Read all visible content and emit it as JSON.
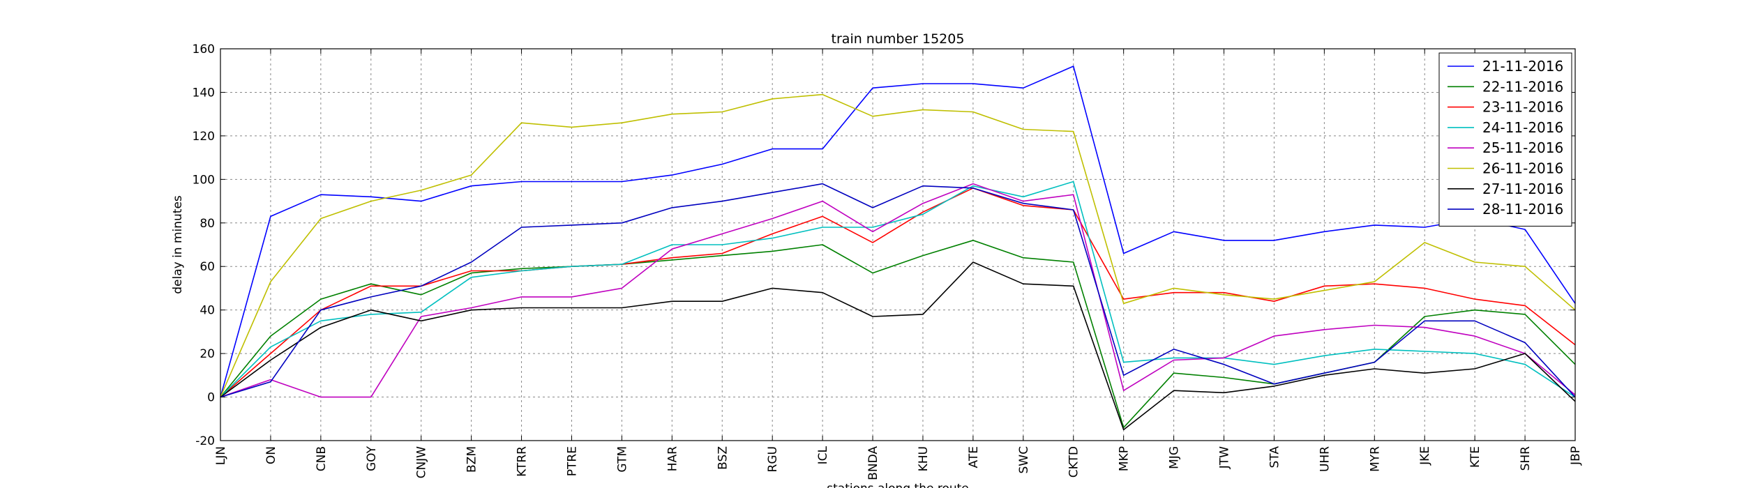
{
  "chart_data": {
    "type": "line",
    "title": "train number 15205",
    "xlabel": "stations along the route",
    "ylabel": "delay in minutes",
    "ylim": [
      -20,
      160
    ],
    "yticks": [
      -20,
      0,
      20,
      40,
      60,
      80,
      100,
      120,
      140,
      160
    ],
    "grid": true,
    "legend_position": "top-right",
    "categories": [
      "LJN",
      "ON",
      "CNB",
      "GOY",
      "CNJW",
      "BZM",
      "KTRR",
      "PTRE",
      "GTM",
      "HAR",
      "BSZ",
      "RGU",
      "ICL",
      "BNDA",
      "KHU",
      "ATE",
      "SWC",
      "CKTD",
      "MKP",
      "MJG",
      "JTW",
      "STA",
      "UHR",
      "MYR",
      "JKE",
      "KTE",
      "SHR",
      "JBP"
    ],
    "series": [
      {
        "name": "21-11-2016",
        "color": "#0000ff",
        "values": [
          0,
          83,
          93,
          92,
          90,
          97,
          99,
          99,
          99,
          102,
          107,
          114,
          114,
          142,
          144,
          144,
          142,
          152,
          66,
          76,
          72,
          72,
          76,
          79,
          78,
          82,
          77,
          43
        ]
      },
      {
        "name": "22-11-2016",
        "color": "#008000",
        "values": [
          0,
          28,
          45,
          52,
          47,
          57,
          59,
          60,
          61,
          63,
          65,
          67,
          70,
          57,
          65,
          72,
          64,
          62,
          -14,
          11,
          9,
          6,
          11,
          16,
          37,
          40,
          38,
          15
        ]
      },
      {
        "name": "23-11-2016",
        "color": "#ff0000",
        "values": [
          0,
          20,
          40,
          51,
          51,
          58,
          58,
          60,
          61,
          64,
          66,
          75,
          83,
          71,
          85,
          96,
          88,
          86,
          45,
          48,
          48,
          44,
          51,
          52,
          50,
          45,
          42,
          24
        ]
      },
      {
        "name": "24-11-2016",
        "color": "#00bfbf",
        "values": [
          0,
          23,
          35,
          38,
          39,
          55,
          58,
          60,
          61,
          70,
          70,
          73,
          78,
          78,
          84,
          97,
          92,
          99,
          16,
          18,
          18,
          15,
          19,
          22,
          21,
          20,
          15,
          0
        ]
      },
      {
        "name": "25-11-2016",
        "color": "#bf00bf",
        "values": [
          0,
          8,
          0,
          0,
          37,
          41,
          46,
          46,
          50,
          68,
          75,
          82,
          90,
          76,
          89,
          98,
          90,
          93,
          3,
          17,
          18,
          28,
          31,
          33,
          32,
          28,
          20,
          1
        ]
      },
      {
        "name": "26-11-2016",
        "color": "#bfbf00",
        "values": [
          0,
          53,
          82,
          90,
          95,
          102,
          126,
          124,
          126,
          130,
          131,
          137,
          139,
          129,
          132,
          131,
          123,
          122,
          43,
          50,
          47,
          45,
          49,
          53,
          71,
          62,
          60,
          40
        ]
      },
      {
        "name": "27-11-2016",
        "color": "#000000",
        "values": [
          0,
          17,
          32,
          40,
          35,
          40,
          41,
          41,
          41,
          44,
          44,
          50,
          48,
          37,
          38,
          62,
          52,
          51,
          -15,
          3,
          2,
          5,
          10,
          13,
          11,
          13,
          20,
          -2
        ]
      },
      {
        "name": "28-11-2016",
        "color": "#0000bf",
        "values": [
          0,
          7,
          40,
          46,
          51,
          62,
          78,
          79,
          80,
          87,
          90,
          94,
          98,
          87,
          97,
          96,
          89,
          86,
          10,
          22,
          15,
          6,
          11,
          16,
          35,
          35,
          25,
          0
        ]
      }
    ]
  }
}
